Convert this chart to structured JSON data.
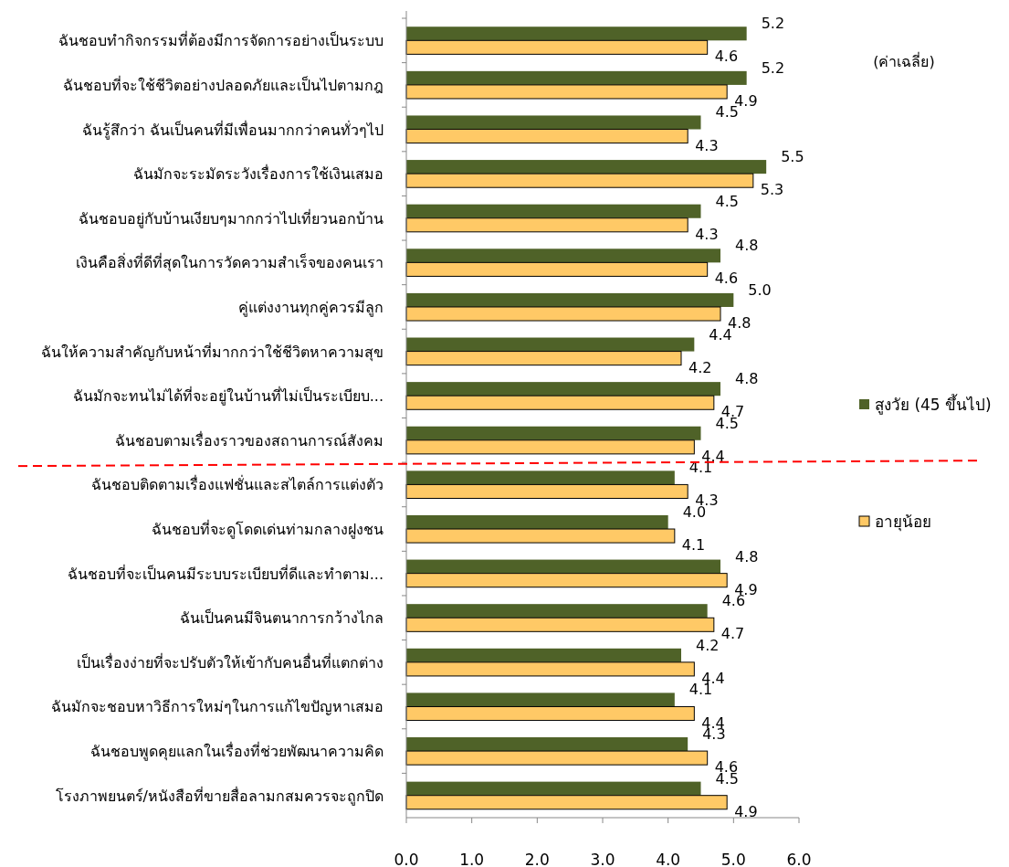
{
  "chart_data": {
    "type": "bar",
    "orientation": "horizontal",
    "categories": [
      "ฉันชอบทำกิจกรรมที่ต้องมีการจัดการอย่างเป็นระบบ",
      "ฉันชอบที่จะใช้ชีวิตอย่างปลอดภัยและเป็นไปตามกฎ",
      "ฉันรู้สึกว่า ฉันเป็นคนที่มีเพื่อนมากกว่าคนทั่วๆไป",
      "ฉันมักจะระมัดระวังเรื่องการใช้เงินเสมอ",
      "ฉันชอบอยู่กับบ้านเงียบๆมากกว่าไปเที่ยวนอกบ้าน",
      "เงินคือสิ่งที่ดีที่สุดในการวัดความสำเร็จของคนเรา",
      "คู่แต่งงานทุกคู่ควรมีลูก",
      "ฉันให้ความสำคัญกับหน้าที่มากกว่าใช้ชีวิตหาความสุข",
      "ฉันมักจะทนไม่ได้ที่จะอยู่ในบ้านที่ไม่เป็นระเบียบ...",
      "ฉันชอบตามเรื่องราวของสถานการณ์สังคม",
      "ฉันชอบติดตามเรื่องแฟชั่นและสไตล์การแต่งตัว",
      "ฉันชอบที่จะดูโดดเด่นท่ามกลางฝูงชน",
      "ฉันชอบที่จะเป็นคนมีระบบระเบียบที่ดีและทำตาม...",
      "ฉันเป็นคนมีจินตนาการกว้างไกล",
      "เป็นเรื่องง่ายที่จะปรับตัวให้เข้ากับคนอื่นที่แตกต่าง",
      "ฉันมักจะชอบหาวิธีการใหม่ๆในการแก้ไขปัญหาเสมอ",
      "ฉันชอบพูดคุยแลกในเรื่องที่ช่วยพัฒนาความคิด",
      "โรงภาพยนตร์/หนังสือที่ขายสื่อลามกสมควรจะถูกปิด"
    ],
    "series": [
      {
        "name": "สูงวัย (45 ขึ้นไป)",
        "color": "#4f6228",
        "values": [
          5.2,
          5.2,
          4.5,
          5.5,
          4.5,
          4.8,
          5.0,
          4.4,
          4.8,
          4.5,
          4.1,
          4.0,
          4.8,
          4.6,
          4.2,
          4.1,
          4.3,
          4.5
        ],
        "value_labels": [
          "5.2",
          "5.2",
          "4.5",
          "5.5",
          "4.5",
          "4.8",
          "5.0",
          "4.4",
          "4.8",
          "4.5",
          "4.1",
          "4.0",
          "4.8",
          "4.6",
          "4.2",
          "4.1",
          "4.3",
          "4.5"
        ]
      },
      {
        "name": "อายุน้อย",
        "color": "#ffc966",
        "values": [
          4.6,
          4.9,
          4.3,
          5.3,
          4.3,
          4.6,
          4.8,
          4.2,
          4.7,
          4.4,
          4.3,
          4.1,
          4.9,
          4.7,
          4.4,
          4.4,
          4.6,
          4.9
        ],
        "value_labels": [
          "4.6",
          "4.9",
          "4.3",
          "5.3",
          "4.3",
          "4.6",
          "4.8",
          "4.2",
          "4.7",
          "4.4",
          "4.3",
          "4.1",
          "4.9",
          "4.7",
          "4.4",
          "4.4",
          "4.6",
          "4.9"
        ]
      }
    ],
    "xlim": [
      0,
      6
    ],
    "xticks": [
      {
        "value": 0,
        "label": "0.0"
      },
      {
        "value": 1,
        "label": "1.0"
      },
      {
        "value": 2,
        "label": "2.0"
      },
      {
        "value": 3,
        "label": "3.0"
      },
      {
        "value": 4,
        "label": "4.0"
      },
      {
        "value": 5,
        "label": "5.0"
      },
      {
        "value": 6,
        "label": "6.0"
      }
    ],
    "legend": "right",
    "grid": false,
    "annotations": [
      "(ค่าเฉลี่ย)"
    ]
  }
}
